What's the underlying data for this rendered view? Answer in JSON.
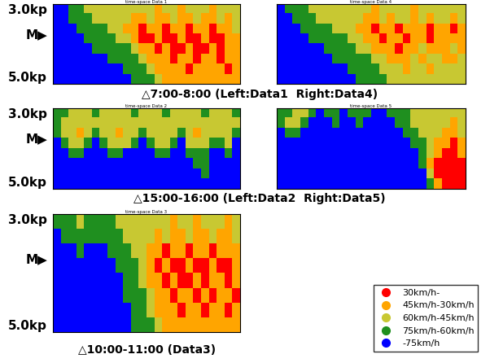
{
  "chart_data": [
    {
      "type": "heatmap",
      "title": "time-space Data 1",
      "tick_labels": false,
      "cells": [
        [
          4,
          4,
          3,
          3,
          2,
          2,
          2,
          2,
          2,
          2,
          2,
          2,
          2,
          1,
          2,
          2,
          1,
          2,
          2,
          2,
          1,
          2,
          2,
          2
        ],
        [
          4,
          4,
          3,
          3,
          3,
          2,
          2,
          2,
          2,
          2,
          1,
          1,
          2,
          1,
          1,
          2,
          1,
          1,
          2,
          1,
          1,
          2,
          1,
          2
        ],
        [
          4,
          4,
          4,
          3,
          3,
          3,
          3,
          2,
          2,
          1,
          1,
          0,
          1,
          1,
          0,
          1,
          1,
          0,
          1,
          1,
          0,
          1,
          1,
          2
        ],
        [
          4,
          4,
          4,
          4,
          3,
          3,
          3,
          3,
          2,
          2,
          1,
          0,
          0,
          1,
          0,
          0,
          1,
          0,
          0,
          1,
          0,
          0,
          1,
          1
        ],
        [
          4,
          4,
          4,
          4,
          4,
          3,
          3,
          3,
          3,
          3,
          2,
          1,
          1,
          0,
          1,
          0,
          0,
          1,
          0,
          0,
          1,
          0,
          1,
          1
        ],
        [
          4,
          4,
          4,
          4,
          4,
          4,
          4,
          3,
          3,
          3,
          3,
          2,
          1,
          1,
          1,
          0,
          1,
          1,
          0,
          1,
          1,
          0,
          1,
          1
        ],
        [
          4,
          4,
          4,
          4,
          4,
          4,
          4,
          4,
          4,
          3,
          3,
          3,
          2,
          1,
          1,
          1,
          1,
          0,
          1,
          1,
          1,
          1,
          0,
          1
        ],
        [
          4,
          4,
          4,
          4,
          4,
          4,
          4,
          4,
          4,
          4,
          3,
          3,
          3,
          2,
          1,
          1,
          1,
          1,
          1,
          1,
          1,
          1,
          1,
          1
        ]
      ]
    },
    {
      "type": "heatmap",
      "title": "time-space Data 4",
      "tick_labels": false,
      "cells": [
        [
          4,
          3,
          3,
          3,
          2,
          2,
          2,
          2,
          2,
          2,
          2,
          2,
          1,
          2,
          2,
          2,
          2,
          1,
          2,
          2,
          2,
          2,
          2,
          2
        ],
        [
          4,
          4,
          3,
          3,
          3,
          2,
          2,
          2,
          2,
          2,
          2,
          1,
          1,
          2,
          1,
          2,
          2,
          1,
          2,
          1,
          2,
          2,
          1,
          2
        ],
        [
          4,
          4,
          4,
          3,
          3,
          3,
          3,
          2,
          2,
          2,
          1,
          1,
          0,
          1,
          1,
          0,
          1,
          1,
          1,
          0,
          1,
          1,
          0,
          1
        ],
        [
          4,
          4,
          4,
          4,
          3,
          3,
          3,
          3,
          3,
          2,
          2,
          1,
          1,
          0,
          1,
          1,
          0,
          1,
          1,
          0,
          1,
          1,
          1,
          1
        ],
        [
          4,
          4,
          4,
          4,
          4,
          4,
          3,
          3,
          3,
          3,
          2,
          2,
          1,
          1,
          1,
          0,
          1,
          1,
          2,
          1,
          1,
          1,
          2,
          1
        ],
        [
          4,
          4,
          4,
          4,
          4,
          4,
          4,
          3,
          3,
          3,
          3,
          3,
          2,
          2,
          1,
          1,
          1,
          2,
          1,
          2,
          2,
          1,
          1,
          2
        ],
        [
          4,
          4,
          4,
          4,
          4,
          4,
          4,
          4,
          4,
          3,
          3,
          3,
          3,
          2,
          2,
          2,
          1,
          2,
          2,
          1,
          2,
          2,
          2,
          2
        ],
        [
          4,
          4,
          4,
          4,
          4,
          4,
          4,
          4,
          4,
          4,
          3,
          3,
          3,
          3,
          2,
          2,
          2,
          2,
          2,
          2,
          2,
          2,
          2,
          2
        ]
      ]
    },
    {
      "type": "heatmap",
      "title": "time-space Data 2",
      "tick_labels": false,
      "cells": [
        [
          3,
          3,
          2,
          2,
          2,
          3,
          2,
          2,
          2,
          2,
          3,
          2,
          2,
          2,
          3,
          2,
          2,
          2,
          2,
          3,
          2,
          2,
          2,
          3
        ],
        [
          3,
          2,
          2,
          2,
          2,
          2,
          2,
          2,
          2,
          2,
          2,
          2,
          2,
          2,
          2,
          2,
          2,
          2,
          2,
          2,
          2,
          2,
          2,
          2
        ],
        [
          3,
          2,
          2,
          1,
          2,
          3,
          2,
          2,
          1,
          2,
          2,
          3,
          2,
          2,
          2,
          2,
          3,
          2,
          1,
          2,
          2,
          2,
          2,
          3
        ],
        [
          4,
          3,
          2,
          2,
          3,
          4,
          3,
          2,
          2,
          2,
          3,
          4,
          3,
          2,
          2,
          3,
          4,
          2,
          2,
          2,
          3,
          3,
          2,
          4
        ],
        [
          4,
          4,
          3,
          3,
          4,
          4,
          4,
          3,
          3,
          4,
          4,
          4,
          4,
          3,
          3,
          4,
          4,
          3,
          3,
          3,
          4,
          4,
          3,
          4
        ],
        [
          4,
          4,
          4,
          4,
          4,
          4,
          4,
          4,
          4,
          4,
          4,
          4,
          4,
          4,
          4,
          4,
          4,
          4,
          3,
          3,
          4,
          4,
          4,
          4
        ],
        [
          4,
          4,
          4,
          4,
          4,
          4,
          4,
          4,
          4,
          4,
          4,
          4,
          4,
          4,
          4,
          4,
          4,
          4,
          4,
          3,
          4,
          4,
          4,
          4
        ],
        [
          4,
          4,
          4,
          4,
          4,
          4,
          4,
          4,
          4,
          4,
          4,
          4,
          4,
          4,
          4,
          4,
          4,
          4,
          4,
          4,
          4,
          4,
          4,
          4
        ]
      ]
    },
    {
      "type": "heatmap",
      "title": "time-space Data 5",
      "tick_labels": false,
      "cells": [
        [
          3,
          3,
          2,
          2,
          3,
          4,
          3,
          3,
          4,
          3,
          3,
          3,
          4,
          4,
          3,
          3,
          3,
          2,
          2,
          2,
          2,
          2,
          2,
          2
        ],
        [
          3,
          2,
          2,
          3,
          4,
          4,
          4,
          3,
          4,
          4,
          3,
          4,
          4,
          4,
          4,
          3,
          3,
          2,
          2,
          2,
          2,
          2,
          1,
          2
        ],
        [
          4,
          3,
          3,
          4,
          4,
          4,
          4,
          4,
          4,
          4,
          4,
          4,
          4,
          4,
          4,
          4,
          3,
          3,
          2,
          2,
          2,
          1,
          1,
          2
        ],
        [
          4,
          4,
          4,
          4,
          4,
          4,
          4,
          4,
          4,
          4,
          4,
          4,
          4,
          4,
          4,
          4,
          4,
          3,
          3,
          2,
          1,
          1,
          0,
          1
        ],
        [
          4,
          4,
          4,
          4,
          4,
          4,
          4,
          4,
          4,
          4,
          4,
          4,
          4,
          4,
          4,
          4,
          4,
          4,
          3,
          2,
          1,
          0,
          0,
          1
        ],
        [
          4,
          4,
          4,
          4,
          4,
          4,
          4,
          4,
          4,
          4,
          4,
          4,
          4,
          4,
          4,
          4,
          4,
          4,
          3,
          1,
          0,
          0,
          0,
          0
        ],
        [
          4,
          4,
          4,
          4,
          4,
          4,
          4,
          4,
          4,
          4,
          4,
          4,
          4,
          4,
          4,
          4,
          4,
          4,
          4,
          2,
          0,
          0,
          0,
          0
        ],
        [
          4,
          4,
          4,
          4,
          4,
          4,
          4,
          4,
          4,
          4,
          4,
          4,
          4,
          4,
          4,
          4,
          4,
          4,
          4,
          3,
          1,
          0,
          0,
          0
        ]
      ]
    },
    {
      "type": "heatmap",
      "title": "time-space Data 3",
      "tick_labels": false,
      "cells": [
        [
          3,
          3,
          3,
          2,
          3,
          3,
          3,
          3,
          2,
          2,
          2,
          2,
          2,
          2,
          2,
          1,
          2,
          2,
          1,
          2,
          2,
          2,
          1,
          2
        ],
        [
          4,
          3,
          3,
          3,
          3,
          3,
          3,
          3,
          3,
          2,
          2,
          2,
          2,
          1,
          2,
          1,
          1,
          2,
          1,
          1,
          2,
          1,
          1,
          2
        ],
        [
          4,
          4,
          4,
          3,
          4,
          4,
          4,
          3,
          3,
          3,
          2,
          2,
          1,
          1,
          0,
          1,
          1,
          0,
          1,
          1,
          0,
          1,
          1,
          1
        ],
        [
          4,
          4,
          4,
          4,
          4,
          4,
          4,
          4,
          3,
          3,
          3,
          2,
          1,
          0,
          1,
          0,
          0,
          1,
          0,
          0,
          1,
          0,
          0,
          1
        ],
        [
          4,
          4,
          4,
          4,
          4,
          4,
          4,
          4,
          4,
          3,
          3,
          2,
          1,
          1,
          0,
          1,
          0,
          0,
          1,
          0,
          1,
          1,
          0,
          1
        ],
        [
          4,
          4,
          4,
          4,
          4,
          4,
          4,
          4,
          4,
          3,
          3,
          3,
          2,
          1,
          1,
          0,
          1,
          1,
          0,
          1,
          0,
          1,
          1,
          0
        ],
        [
          4,
          4,
          4,
          4,
          4,
          4,
          4,
          4,
          4,
          4,
          3,
          3,
          2,
          1,
          1,
          1,
          0,
          1,
          1,
          0,
          1,
          1,
          0,
          1
        ],
        [
          4,
          4,
          4,
          4,
          4,
          4,
          4,
          4,
          4,
          4,
          3,
          3,
          3,
          2,
          1,
          1,
          1,
          1,
          1,
          1,
          1,
          1,
          1,
          1
        ]
      ]
    }
  ],
  "captions": [
    "△7:00-8:00 (Left:Data1  Right:Data4)",
    "△15:00-16:00 (Left:Data2  Right:Data5)",
    "△10:00-11:00 (Data3)"
  ],
  "position_labels": {
    "top": "3.0kp",
    "mid": "M▶",
    "bottom": "5.0kp"
  },
  "speed_classes": [
    {
      "label": "30km/h-",
      "color": "#ff0000"
    },
    {
      "label": "45km/h-30km/h",
      "color": "#ffa500"
    },
    {
      "label": "60km/h-45km/h",
      "color": "#c8c832"
    },
    {
      "label": "75km/h-60km/h",
      "color": "#1f8f1f"
    },
    {
      "label": "-75km/h",
      "color": "#0000ff"
    }
  ]
}
